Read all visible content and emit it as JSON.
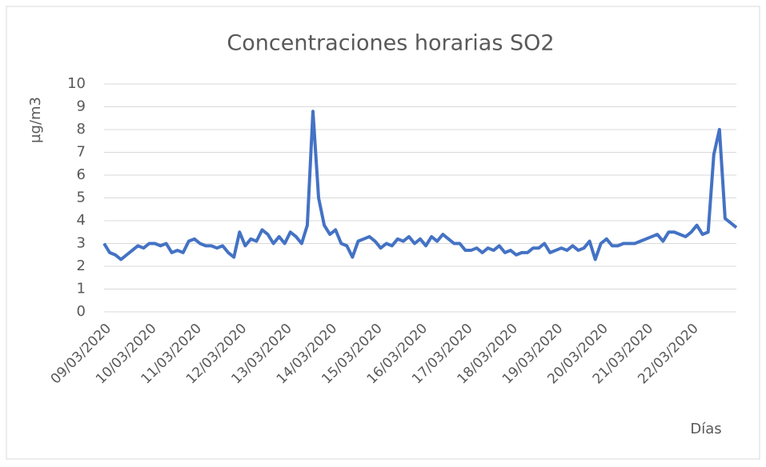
{
  "chart_data": {
    "type": "line",
    "title": "Concentraciones horarias SO2",
    "y_label": "µg/m3",
    "x_label": "Días",
    "categories": [
      "09/03/2020",
      null,
      null,
      null,
      null,
      null,
      null,
      null,
      "10/03/2020",
      null,
      null,
      null,
      null,
      null,
      null,
      null,
      "11/03/2020",
      null,
      null,
      null,
      null,
      null,
      null,
      null,
      "12/03/2020",
      null,
      null,
      null,
      null,
      null,
      null,
      null,
      "13/03/2020",
      null,
      null,
      null,
      null,
      null,
      null,
      null,
      "14/03/2020",
      null,
      null,
      null,
      null,
      null,
      null,
      null,
      "15/03/2020",
      null,
      null,
      null,
      null,
      null,
      null,
      null,
      "16/03/2020",
      null,
      null,
      null,
      null,
      null,
      null,
      null,
      "17/03/2020",
      null,
      null,
      null,
      null,
      null,
      null,
      null,
      "18/03/2020",
      null,
      null,
      null,
      null,
      null,
      null,
      null,
      "19/03/2020",
      null,
      null,
      null,
      null,
      null,
      null,
      null,
      "20/03/2020",
      null,
      null,
      null,
      null,
      null,
      null,
      null,
      "21/03/2020",
      null,
      null,
      null,
      null,
      null,
      null,
      null,
      "22/03/2020",
      null,
      null,
      null,
      null,
      null,
      null,
      null,
      null
    ],
    "series": [
      {
        "name": "SO2",
        "color": "#4472c4",
        "values": [
          3.0,
          2.6,
          2.5,
          2.3,
          2.5,
          2.7,
          2.9,
          2.8,
          3.0,
          3.0,
          2.9,
          3.0,
          2.6,
          2.7,
          2.6,
          3.1,
          3.2,
          3.0,
          2.9,
          2.9,
          2.8,
          2.9,
          2.6,
          2.4,
          3.5,
          2.9,
          3.2,
          3.1,
          3.6,
          3.4,
          3.0,
          3.3,
          3.0,
          3.5,
          3.3,
          3.0,
          3.8,
          8.8,
          5.0,
          3.8,
          3.4,
          3.6,
          3.0,
          2.9,
          2.4,
          3.1,
          3.2,
          3.3,
          3.1,
          2.8,
          3.0,
          2.9,
          3.2,
          3.1,
          3.3,
          3.0,
          3.2,
          2.9,
          3.3,
          3.1,
          3.4,
          3.2,
          3.0,
          3.0,
          2.7,
          2.7,
          2.8,
          2.6,
          2.8,
          2.7,
          2.9,
          2.6,
          2.7,
          2.5,
          2.6,
          2.6,
          2.8,
          2.8,
          3.0,
          2.6,
          2.7,
          2.8,
          2.7,
          2.9,
          2.7,
          2.8,
          3.1,
          2.3,
          3.0,
          3.2,
          2.9,
          2.9,
          3.0,
          3.0,
          3.0,
          3.1,
          3.2,
          3.3,
          3.4,
          3.1,
          3.5,
          3.5,
          3.4,
          3.3,
          3.5,
          3.8,
          3.4,
          3.5,
          6.9,
          8.0,
          4.1,
          3.9,
          3.7
        ]
      }
    ],
    "ylim": [
      0,
      10
    ],
    "yticks": [
      0,
      1,
      2,
      3,
      4,
      5,
      6,
      7,
      8,
      9,
      10
    ],
    "grid": true
  }
}
